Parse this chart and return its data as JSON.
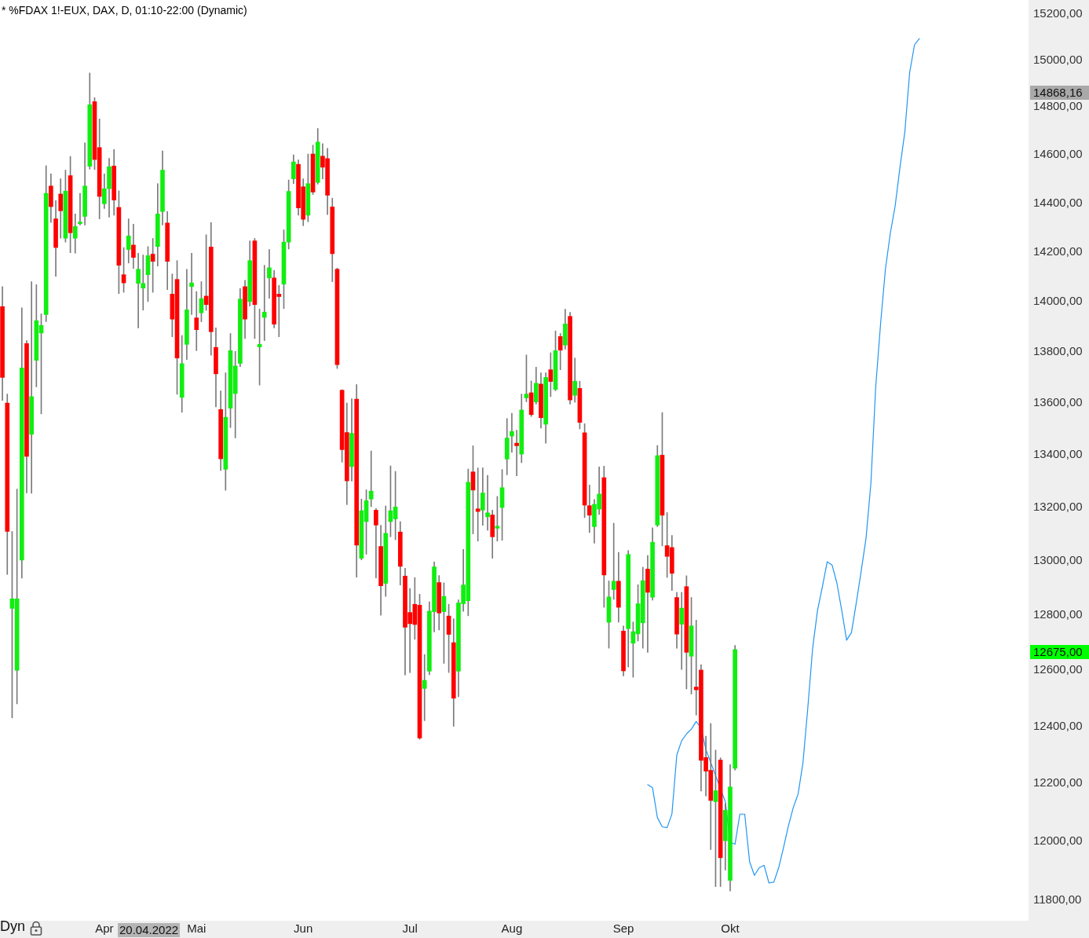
{
  "chart_data": {
    "type": "candlestick",
    "title": "* %FDAX 1!-EUX, DAX, D, 01:10-22:00 (Dynamic)",
    "categories": [
      null,
      null,
      null,
      null,
      null,
      null,
      null,
      null,
      null,
      null,
      null,
      null,
      null,
      null,
      null,
      null,
      null,
      null,
      null,
      null,
      null,
      "Apr",
      null,
      null,
      null,
      null,
      null,
      null,
      null,
      null,
      null,
      null,
      null,
      null,
      null,
      null,
      null,
      null,
      null,
      null,
      "Mai",
      null,
      null,
      null,
      null,
      null,
      null,
      null,
      null,
      null,
      null,
      null,
      null,
      null,
      null,
      null,
      null,
      null,
      null,
      null,
      null,
      null,
      "Jun",
      null,
      null,
      null,
      null,
      null,
      null,
      null,
      null,
      null,
      null,
      null,
      null,
      null,
      null,
      null,
      null,
      null,
      null,
      null,
      null,
      null,
      "Jul",
      null,
      null,
      null,
      null,
      null,
      null,
      null,
      null,
      null,
      null,
      null,
      null,
      null,
      null,
      null,
      null,
      null,
      null,
      null,
      null,
      "Aug",
      null,
      null,
      null,
      null,
      null,
      null,
      null,
      null,
      null,
      null,
      null,
      null,
      null,
      null,
      null,
      null,
      null,
      null,
      null,
      null,
      null,
      null,
      "Sep",
      null,
      null,
      null,
      null,
      null,
      null,
      null,
      null,
      null,
      null,
      null,
      null,
      null,
      null,
      null,
      null,
      null,
      null,
      null,
      null,
      null,
      "Okt",
      null,
      null,
      null,
      null,
      null,
      null,
      null,
      null,
      null,
      null,
      null,
      null,
      null,
      null,
      null,
      null,
      null,
      null,
      null,
      null,
      null,
      null,
      null,
      null,
      null,
      null,
      null,
      null,
      null,
      null,
      null,
      null,
      null,
      null,
      null,
      null,
      null,
      null,
      null,
      null,
      null,
      null,
      null,
      null,
      null,
      null,
      null,
      null,
      null,
      null,
      null,
      null,
      null,
      null,
      null,
      null,
      null,
      null,
      null,
      null,
      null
    ],
    "series": [
      {
        "ohlc": [
          [
            13980,
            14060,
            13610,
            13700
          ],
          [
            13600,
            13635,
            12950,
            13110
          ],
          [
            12825,
            13110,
            12430,
            12860
          ],
          [
            12600,
            13270,
            12480,
            12860
          ],
          [
            13003,
            13975,
            12936,
            13737
          ],
          [
            13833,
            13845,
            13255,
            13394
          ],
          [
            13479,
            14080,
            13254,
            13625
          ],
          [
            13767,
            14068,
            13663,
            13924
          ],
          [
            13875,
            13951,
            13558,
            13905
          ],
          [
            13948,
            14554,
            13920,
            14440
          ],
          [
            14470,
            14520,
            14320,
            14385
          ],
          [
            14335,
            14410,
            14102,
            14218
          ],
          [
            14437,
            14500,
            14256,
            14368
          ],
          [
            14256,
            14536,
            14240,
            14449
          ],
          [
            14513,
            14593,
            14197,
            14278
          ],
          [
            14256,
            14355,
            14195,
            14304
          ],
          [
            14315,
            14440,
            14310,
            14322
          ],
          [
            14345,
            14650,
            14310,
            14470
          ],
          [
            14552,
            14945,
            14540,
            14810
          ],
          [
            14823,
            14840,
            14538,
            14580
          ],
          [
            14630,
            14750,
            14335,
            14427
          ],
          [
            14397,
            14520,
            14377,
            14459
          ],
          [
            14459,
            14585,
            14342,
            14550
          ],
          [
            14553,
            14622,
            14350,
            14412
          ],
          [
            14382,
            14450,
            14032,
            14146
          ],
          [
            14108,
            14218,
            14037,
            14075
          ],
          [
            14210,
            14335,
            14155,
            14265
          ],
          [
            14228,
            14313,
            14133,
            14178
          ],
          [
            14073,
            14195,
            13895,
            14130
          ],
          [
            14054,
            14188,
            13966,
            14073
          ],
          [
            14108,
            14222,
            14000,
            14185
          ],
          [
            14191,
            14255,
            14037,
            14162
          ],
          [
            14222,
            14480,
            14143,
            14355
          ],
          [
            14365,
            14616,
            14310,
            14536
          ],
          [
            14318,
            14365,
            14048,
            14162
          ],
          [
            14030,
            14111,
            13860,
            13930
          ],
          [
            14089,
            14165,
            13634,
            13776
          ],
          [
            13622,
            13865,
            13564,
            13754
          ],
          [
            13830,
            14130,
            13770,
            13967
          ],
          [
            14060,
            14195,
            13948,
            14075
          ],
          [
            13935,
            14040,
            13805,
            13888
          ],
          [
            13955,
            14080,
            13920,
            14012
          ],
          [
            14022,
            14270,
            13965,
            13988
          ],
          [
            14220,
            14320,
            13787,
            13880
          ],
          [
            13818,
            13895,
            13585,
            13714
          ],
          [
            13575,
            13647,
            13340,
            13385
          ],
          [
            13345,
            13718,
            13265,
            13545
          ],
          [
            13580,
            13873,
            13505,
            13805
          ],
          [
            13637,
            13802,
            13465,
            13745
          ],
          [
            13755,
            14052,
            13742,
            14010
          ],
          [
            14060,
            14085,
            13853,
            13930
          ],
          [
            14000,
            14245,
            13982,
            14165
          ],
          [
            14245,
            14255,
            13853,
            13988
          ],
          [
            13820,
            13970,
            13670,
            13830
          ],
          [
            13937,
            14146,
            13845,
            13958
          ],
          [
            14095,
            14210,
            14013,
            14136
          ],
          [
            14095,
            14125,
            13895,
            13910
          ],
          [
            14030,
            14065,
            13860,
            14020
          ],
          [
            14070,
            14290,
            13972,
            14240
          ],
          [
            14240,
            14495,
            14212,
            14448
          ],
          [
            14500,
            14600,
            14480,
            14570
          ],
          [
            14560,
            14578,
            14350,
            14380
          ],
          [
            14467,
            14500,
            14307,
            14333
          ],
          [
            14350,
            14603,
            14323,
            14480
          ],
          [
            14603,
            14640,
            14435,
            14445
          ],
          [
            14485,
            14710,
            14478,
            14653
          ],
          [
            14594,
            14646,
            14500,
            14548
          ],
          [
            14584,
            14627,
            14352,
            14432
          ],
          [
            14384,
            14420,
            14080,
            14193
          ],
          [
            14130,
            14135,
            13735,
            13750
          ],
          [
            13650,
            13652,
            13372,
            13420
          ],
          [
            13486,
            13600,
            13211,
            13301
          ],
          [
            13355,
            13617,
            13300,
            13483
          ],
          [
            13615,
            13672,
            12940,
            13059
          ],
          [
            13010,
            13232,
            13004,
            13188
          ],
          [
            13147,
            13267,
            13025,
            13226
          ],
          [
            13232,
            13415,
            13203,
            13262
          ],
          [
            13190,
            13196,
            12937,
            13134
          ],
          [
            13054,
            13133,
            12800,
            12908
          ],
          [
            12917,
            13206,
            12869,
            13103
          ],
          [
            13147,
            13358,
            13090,
            13188
          ],
          [
            13157,
            13337,
            13079,
            13202
          ],
          [
            13108,
            13147,
            12911,
            12980
          ],
          [
            12944,
            12973,
            12583,
            12756
          ],
          [
            12810,
            12898,
            12592,
            12769
          ],
          [
            12840,
            12938,
            12712,
            12766
          ],
          [
            12837,
            12877,
            12354,
            12359
          ],
          [
            12535,
            12657,
            12420,
            12564
          ],
          [
            12597,
            12849,
            12584,
            12815
          ],
          [
            12813,
            12996,
            12739,
            12978
          ],
          [
            12920,
            12946,
            12746,
            12808
          ],
          [
            12813,
            12919,
            12625,
            12869
          ],
          [
            12797,
            12840,
            12592,
            12730
          ],
          [
            12700,
            12787,
            12400,
            12500
          ],
          [
            12597,
            12856,
            12505,
            12845
          ],
          [
            12842,
            13043,
            12814,
            12911
          ],
          [
            12853,
            13346,
            12798,
            13296
          ],
          [
            13335,
            13435,
            13101,
            13266
          ],
          [
            13195,
            13350,
            13074,
            13185
          ],
          [
            13190,
            13350,
            13133,
            13255
          ],
          [
            13165,
            13322,
            13115,
            13180
          ],
          [
            13172,
            13190,
            13010,
            13090
          ],
          [
            13122,
            13242,
            13074,
            13130
          ],
          [
            13200,
            13344,
            13077,
            13275
          ],
          [
            13384,
            13540,
            13324,
            13465
          ],
          [
            13472,
            13560,
            13410,
            13490
          ],
          [
            13445,
            13495,
            13320,
            13435
          ],
          [
            13403,
            13635,
            13370,
            13573
          ],
          [
            13620,
            13788,
            13605,
            13635
          ],
          [
            13640,
            13686,
            13548,
            13555
          ],
          [
            13604,
            13740,
            13596,
            13677
          ],
          [
            13674,
            13718,
            13503,
            13543
          ],
          [
            13518,
            13718,
            13445,
            13700
          ],
          [
            13730,
            13797,
            13625,
            13684
          ],
          [
            13653,
            13883,
            13648,
            13805
          ],
          [
            13861,
            13873,
            13730,
            13807
          ],
          [
            13827,
            13970,
            13811,
            13911
          ],
          [
            13941,
            13957,
            13596,
            13612
          ],
          [
            13630,
            13776,
            13603,
            13685
          ],
          [
            13657,
            13685,
            13500,
            13525
          ],
          [
            13485,
            13520,
            13162,
            13209
          ],
          [
            13207,
            13285,
            13106,
            13171
          ],
          [
            13128,
            13230,
            13066,
            13212
          ],
          [
            13194,
            13354,
            13174,
            13251
          ],
          [
            13313,
            13357,
            12829,
            12948
          ],
          [
            12774,
            12926,
            12680,
            12867
          ],
          [
            12894,
            13141,
            12858,
            12925
          ],
          [
            12925,
            13032,
            12775,
            12829
          ],
          [
            12742,
            12761,
            12580,
            12598
          ],
          [
            12751,
            13039,
            12612,
            13024
          ],
          [
            12698,
            12775,
            12575,
            12740
          ],
          [
            12732,
            12912,
            12706,
            12842
          ],
          [
            12772,
            12977,
            12680,
            12927
          ],
          [
            12970,
            13020,
            12665,
            12884
          ],
          [
            12866,
            13124,
            12855,
            13070
          ],
          [
            13134,
            13436,
            13128,
            13397
          ],
          [
            13399,
            13563,
            13056,
            13171
          ],
          [
            13057,
            13181,
            12939,
            13017
          ],
          [
            13050,
            13095,
            12891,
            12954
          ],
          [
            12865,
            12884,
            12680,
            12731
          ],
          [
            12767,
            12884,
            12603,
            12826
          ],
          [
            12905,
            12945,
            12533,
            12665
          ],
          [
            12651,
            12865,
            12515,
            12761
          ],
          [
            12540,
            12782,
            12440,
            12530
          ],
          [
            12601,
            12620,
            12173,
            12280
          ],
          [
            12290,
            12365,
            12156,
            12242
          ],
          [
            12245,
            12410,
            11971,
            12140
          ],
          [
            12136,
            12316,
            11845,
            12174
          ],
          [
            12281,
            12289,
            11845,
            11943
          ],
          [
            12001,
            12130,
            11901,
            12106
          ],
          [
            11866,
            12265,
            11830,
            12187
          ],
          [
            12252,
            12690,
            12246,
            12675
          ],
          null,
          null,
          null,
          null,
          null,
          null,
          null,
          null,
          null,
          null,
          null,
          null,
          null,
          null,
          null,
          null,
          null,
          null,
          null,
          null,
          null,
          null,
          null,
          null,
          null,
          null,
          null,
          null,
          null,
          null,
          null,
          null,
          null,
          null,
          null,
          null,
          null,
          null,
          null,
          null,
          null,
          null,
          null,
          null,
          null,
          null,
          null,
          null,
          null,
          null,
          null,
          null,
          null,
          null,
          null,
          null,
          null,
          null,
          null,
          null
        ],
        "colors": [
          "#ff0000",
          "#ff0000",
          "#11ee11",
          "#11ee11",
          "#11ee11",
          "#ff0000",
          "#11ee11",
          "#11ee11",
          "#11ee11",
          "#11ee11",
          "#ff0000",
          "#ff0000",
          "#ff0000",
          "#11ee11",
          "#ff0000",
          "#11ee11",
          "#11ee11",
          "#11ee11",
          "#11ee11",
          "#ff0000",
          "#ff0000",
          "#11ee11",
          "#11ee11",
          "#ff0000",
          "#ff0000",
          "#ff0000",
          "#11ee11",
          "#ff0000",
          "#11ee11",
          "#11ee11",
          "#11ee11",
          "#ff0000",
          "#11ee11",
          "#11ee11",
          "#ff0000",
          "#ff0000",
          "#ff0000",
          "#11ee11",
          "#11ee11",
          "#11ee11",
          "#ff0000",
          "#11ee11",
          "#ff0000",
          "#ff0000",
          "#ff0000",
          "#ff0000",
          "#11ee11",
          "#11ee11",
          "#11ee11",
          "#11ee11",
          "#ff0000",
          "#11ee11",
          "#ff0000",
          "#11ee11",
          "#11ee11",
          "#11ee11",
          "#ff0000",
          "#ff0000",
          "#11ee11",
          "#11ee11",
          "#11ee11",
          "#ff0000",
          "#ff0000",
          "#11ee11",
          "#ff0000",
          "#11ee11",
          "#ff0000",
          "#ff0000",
          "#ff0000",
          "#ff0000",
          "#ff0000",
          "#ff0000",
          "#11ee11",
          "#ff0000",
          "#11ee11",
          "#11ee11",
          "#11ee11",
          "#ff0000",
          "#ff0000",
          "#11ee11",
          "#11ee11",
          "#11ee11",
          "#ff0000",
          "#ff0000",
          "#ff0000",
          "#ff0000",
          "#ff0000",
          "#11ee11",
          "#11ee11",
          "#11ee11",
          "#ff0000",
          "#11ee11",
          "#ff0000",
          "#ff0000",
          "#11ee11",
          "#11ee11",
          "#11ee11",
          "#ff0000",
          "#ff0000",
          "#11ee11",
          "#11ee11",
          "#ff0000",
          "#11ee11",
          "#11ee11",
          "#11ee11",
          "#11ee11",
          "#ff0000",
          "#11ee11",
          "#11ee11",
          "#ff0000",
          "#11ee11",
          "#ff0000",
          "#11ee11",
          "#ff0000",
          "#11ee11",
          "#ff0000",
          "#11ee11",
          "#ff0000",
          "#11ee11",
          "#ff0000",
          "#ff0000",
          "#ff0000",
          "#11ee11",
          "#11ee11",
          "#ff0000",
          "#11ee11",
          "#11ee11",
          "#ff0000",
          "#ff0000",
          "#11ee11",
          "#11ee11",
          "#11ee11",
          "#11ee11",
          "#ff0000",
          "#11ee11",
          "#11ee11",
          "#ff0000",
          "#ff0000",
          "#ff0000",
          "#ff0000",
          "#11ee11",
          "#ff0000",
          "#11ee11",
          "#ff0000",
          "#ff0000",
          "#ff0000",
          "#ff0000",
          "#11ee11",
          "#ff0000",
          "#11ee11",
          "#11ee11",
          "#11ee11",
          null,
          null,
          null,
          null,
          null,
          null,
          null,
          null,
          null,
          null,
          null,
          null,
          null,
          null,
          null,
          null,
          null,
          null,
          null,
          null,
          null,
          null,
          null,
          null,
          null,
          null,
          null,
          null,
          null,
          null,
          null,
          null,
          null,
          null,
          null,
          null,
          null,
          null,
          null,
          null,
          null,
          null,
          null,
          null,
          null,
          null,
          null,
          null,
          null,
          null,
          null,
          null,
          null,
          null,
          null,
          null,
          null,
          null,
          null,
          null
        ]
      },
      {
        "type": "line",
        "color": "#2196f3",
        "values": [
          null,
          null,
          null,
          null,
          null,
          null,
          null,
          null,
          null,
          null,
          null,
          null,
          null,
          null,
          null,
          null,
          null,
          null,
          null,
          null,
          null,
          null,
          null,
          null,
          null,
          null,
          null,
          null,
          null,
          null,
          null,
          null,
          null,
          null,
          null,
          null,
          null,
          null,
          null,
          null,
          null,
          null,
          null,
          null,
          null,
          null,
          null,
          null,
          null,
          null,
          null,
          null,
          null,
          null,
          null,
          null,
          null,
          null,
          null,
          null,
          null,
          null,
          null,
          null,
          null,
          null,
          null,
          null,
          null,
          null,
          null,
          null,
          null,
          null,
          null,
          null,
          null,
          null,
          null,
          null,
          null,
          null,
          null,
          null,
          null,
          null,
          null,
          null,
          null,
          null,
          null,
          null,
          null,
          null,
          null,
          null,
          null,
          null,
          null,
          null,
          null,
          null,
          null,
          null,
          null,
          null,
          null,
          null,
          null,
          null,
          null,
          null,
          null,
          null,
          null,
          null,
          null,
          null,
          null,
          null,
          null,
          null,
          null,
          null,
          null,
          null,
          null,
          null,
          null,
          null,
          null,
          null,
          null,
          12195,
          12184,
          12081,
          12049,
          12046,
          12094,
          12299,
          12349,
          12373,
          12390,
          12417,
          12395,
          12318,
          null,
          null,
          null,
          12136,
          11997,
          11989,
          12093,
          12093,
          11930,
          11883,
          11909,
          11917,
          11857,
          11860,
          11909,
          11978,
          12052,
          12115,
          12162,
          12271,
          12465,
          12680,
          12817,
          12904,
          12997,
          12985,
          12918,
          12817,
          12709,
          12737,
          12846,
          12962,
          13084,
          13290,
          13663,
          13911,
          14130,
          14275,
          14387,
          14548,
          14695,
          14948,
          15066,
          15093,
          null,
          null,
          null,
          null,
          null,
          null,
          null,
          null,
          null,
          null,
          null,
          null,
          null,
          null,
          null,
          null,
          null,
          null,
          null,
          null,
          null,
          null
        ]
      }
    ],
    "ylim": [
      11730,
      15260
    ],
    "yticks": [
      {
        "value": 11800,
        "label": "11800,00"
      },
      {
        "value": 12000,
        "label": "12000,00"
      },
      {
        "value": 12200,
        "label": "12200,00"
      },
      {
        "value": 12400,
        "label": "12400,00"
      },
      {
        "value": 12600,
        "label": "12600,00"
      },
      {
        "value": 12800,
        "label": "12800,00"
      },
      {
        "value": 13000,
        "label": "13000,00"
      },
      {
        "value": 13200,
        "label": "13200,00"
      },
      {
        "value": 13400,
        "label": "13400,00"
      },
      {
        "value": 13600,
        "label": "13600,00"
      },
      {
        "value": 13800,
        "label": "13800,00"
      },
      {
        "value": 14000,
        "label": "14000,00"
      },
      {
        "value": 14200,
        "label": "14200,00"
      },
      {
        "value": 14400,
        "label": "14400,00"
      },
      {
        "value": 14600,
        "label": "14600,00"
      },
      {
        "value": 14800,
        "label": "14800,00"
      },
      {
        "value": 15000,
        "label": "15000,00"
      },
      {
        "value": 15200,
        "label": "15200,00"
      }
    ],
    "log": true,
    "annotations": [
      "Dyn",
      "20.04.2022",
      "14868,16",
      "12675,00"
    ]
  }
}
